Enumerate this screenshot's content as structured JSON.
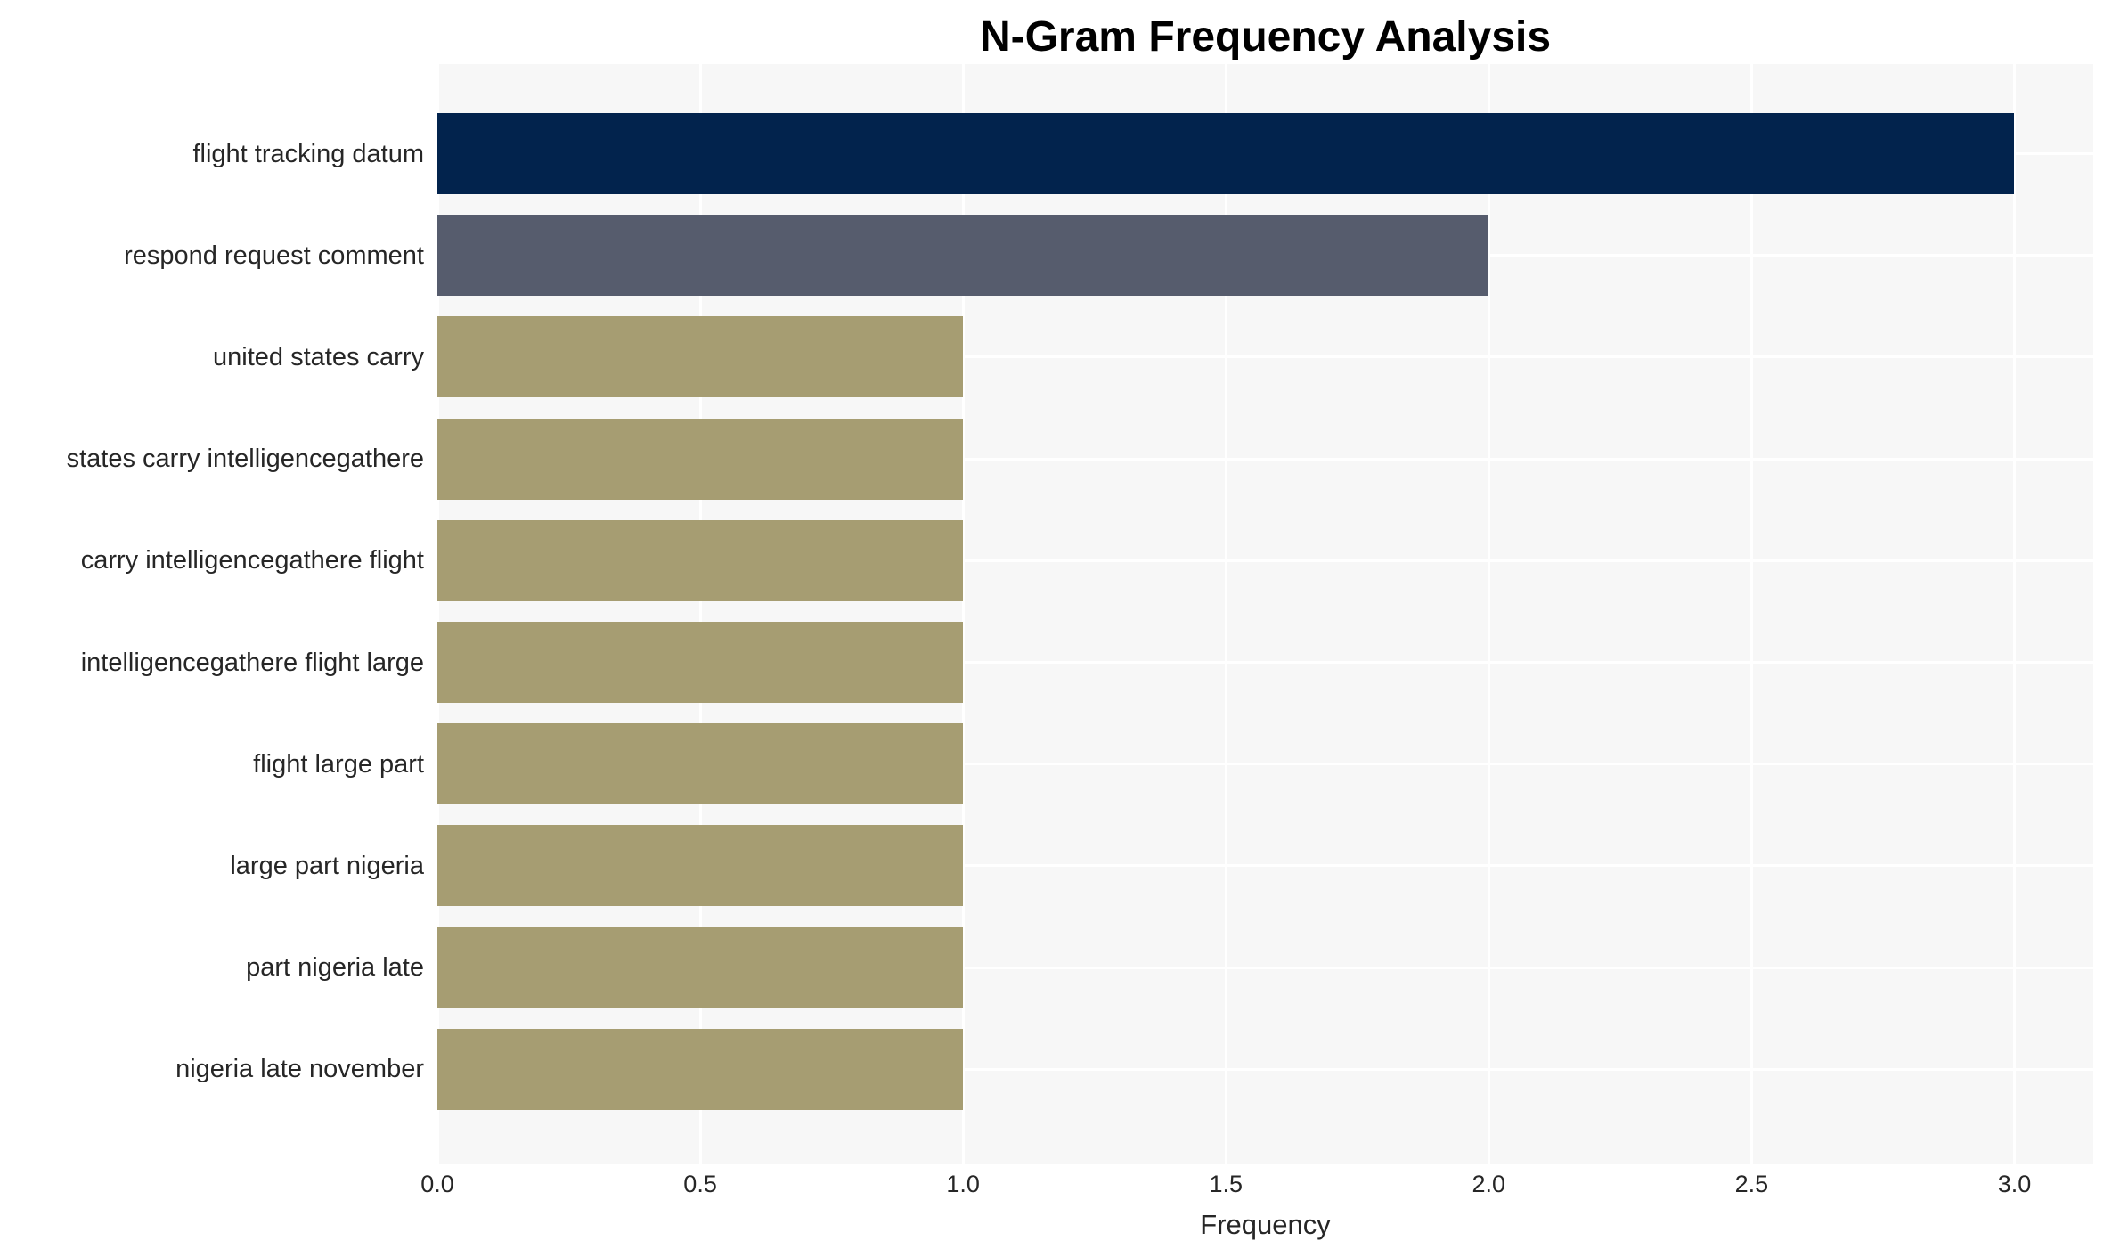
{
  "chart_data": {
    "type": "bar",
    "orientation": "horizontal",
    "title": "N-Gram Frequency Analysis",
    "xlabel": "Frequency",
    "ylabel": "",
    "categories": [
      "flight tracking datum",
      "respond request comment",
      "united states carry",
      "states carry intelligencegathere",
      "carry intelligencegathere flight",
      "intelligencegathere flight large",
      "flight large part",
      "large part nigeria",
      "part nigeria late",
      "nigeria late november"
    ],
    "values": [
      3.0,
      2.0,
      1.0,
      1.0,
      1.0,
      1.0,
      1.0,
      1.0,
      1.0,
      1.0
    ],
    "bar_colors": [
      "#02234d",
      "#565c6d",
      "#a69d72",
      "#a69d72",
      "#a69d72",
      "#a69d72",
      "#a69d72",
      "#a69d72",
      "#a69d72",
      "#a69d72"
    ],
    "xlim": [
      0,
      3.15
    ],
    "xticks": [
      0.0,
      0.5,
      1.0,
      1.5,
      2.0,
      2.5,
      3.0
    ],
    "xtick_labels": [
      "0.0",
      "0.5",
      "1.0",
      "1.5",
      "2.0",
      "2.5",
      "3.0"
    ],
    "grid": true,
    "legend": false,
    "colors": {
      "figure_bg": "#ffffff",
      "plot_bg": "#f7f7f7",
      "grid_color": "#ffffff",
      "text_color": "#262626",
      "title_color": "#000000"
    }
  }
}
